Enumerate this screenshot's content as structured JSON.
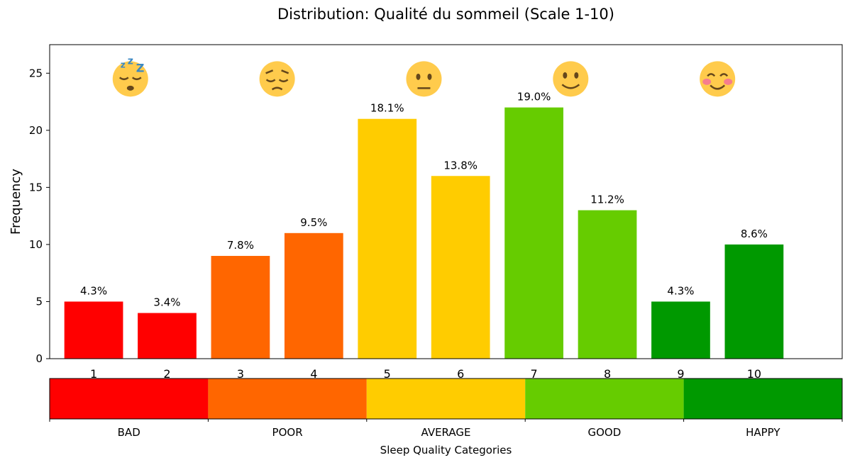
{
  "chart_data": {
    "type": "bar",
    "title": "Distribution: Qualité du sommeil  (Scale 1-10)",
    "xlabel": "",
    "ylabel": "Frequency",
    "ylim": [
      0,
      27.5
    ],
    "yticks": [
      0,
      5,
      10,
      15,
      20,
      25
    ],
    "categories": [
      "1",
      "2",
      "3",
      "4",
      "5",
      "6",
      "7",
      "8",
      "9",
      "10"
    ],
    "values": [
      5,
      4,
      9,
      11,
      21,
      16,
      22,
      13,
      5,
      10
    ],
    "percent_labels": [
      "4.3%",
      "3.4%",
      "7.8%",
      "9.5%",
      "18.1%",
      "13.8%",
      "19.0%",
      "11.2%",
      "4.3%",
      "8.6%"
    ],
    "bar_colors": [
      "#ff0000",
      "#ff0000",
      "#ff6600",
      "#ff6600",
      "#ffcc00",
      "#ffcc00",
      "#66cc00",
      "#66cc00",
      "#009900",
      "#009900"
    ],
    "emoji_markers": [
      {
        "icon": "sleeping-face-icon",
        "x": 1.5
      },
      {
        "icon": "pensive-face-icon",
        "x": 3.5
      },
      {
        "icon": "neutral-face-icon",
        "x": 5.5
      },
      {
        "icon": "slightly-smiling-face-icon",
        "x": 7.5
      },
      {
        "icon": "smiling-blushing-face-icon",
        "x": 9.5
      }
    ],
    "grid": false,
    "legend": "none"
  },
  "category_bar": {
    "label": "Sleep Quality Categories",
    "segments": [
      {
        "label": "BAD",
        "color": "#ff0000"
      },
      {
        "label": "POOR",
        "color": "#ff6600"
      },
      {
        "label": "AVERAGE",
        "color": "#ffcc00"
      },
      {
        "label": "GOOD",
        "color": "#66cc00"
      },
      {
        "label": "HAPPY",
        "color": "#009900"
      }
    ]
  }
}
